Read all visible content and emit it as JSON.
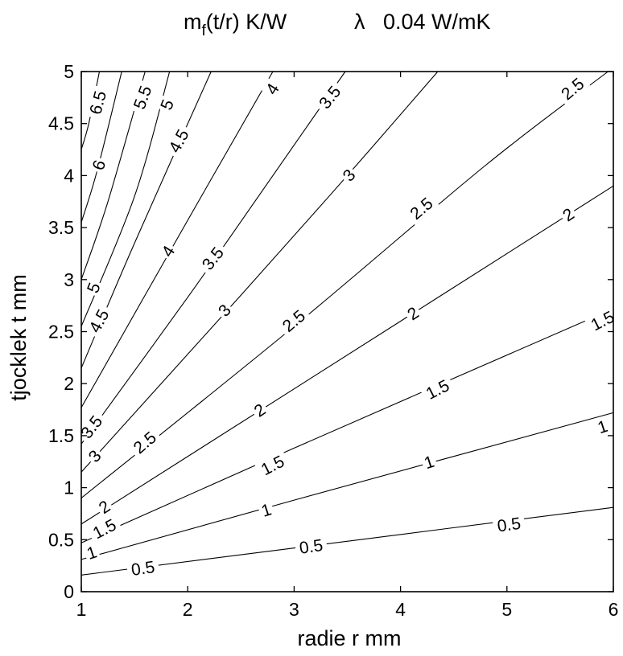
{
  "chart_data": {
    "type": "contour",
    "title": "m_f(t/r)  K/W      λ  0.04 W/mK",
    "title_parts": {
      "base": "m",
      "subscript": "f",
      "rest": "(t/r)  K/W",
      "lambda_symbol": "λ",
      "lambda_value": "0.04 W/mK"
    },
    "xlabel": "radie r  mm",
    "ylabel": "tjocklek t  mm",
    "xlim": [
      1,
      6
    ],
    "ylim": [
      0,
      5
    ],
    "xticks": [
      1,
      2,
      3,
      4,
      5,
      6
    ],
    "yticks": [
      0,
      0.5,
      1,
      1.5,
      2,
      2.5,
      3,
      3.5,
      4,
      4.5,
      5
    ],
    "xtick_labels": [
      "1",
      "2",
      "3",
      "4",
      "5",
      "6"
    ],
    "ytick_labels": [
      "0",
      "0.5",
      "1",
      "1.5",
      "2",
      "2.5",
      "3",
      "3.5",
      "4",
      "4.5",
      "5"
    ],
    "grid": false,
    "line_color": "#000000",
    "contours": [
      {
        "points": [
          [
            1.0,
            0.16
          ],
          [
            3.0,
            0.42
          ],
          [
            6.0,
            0.81
          ]
        ],
        "labels": [
          {
            "text": "0.5",
            "x": 1.58,
            "y": 0.22,
            "angle": -8
          },
          {
            "text": "0.5",
            "x": 3.16,
            "y": 0.43,
            "angle": -8
          },
          {
            "text": "0.5",
            "x": 5.02,
            "y": 0.64,
            "angle": -8
          }
        ]
      },
      {
        "points": [
          [
            1.0,
            0.31
          ],
          [
            3.0,
            0.88
          ],
          [
            6.0,
            1.72
          ]
        ],
        "labels": [
          {
            "text": "1",
            "x": 1.1,
            "y": 0.37,
            "angle": -18
          },
          {
            "text": "1",
            "x": 2.74,
            "y": 0.78,
            "angle": -18
          },
          {
            "text": "1",
            "x": 4.27,
            "y": 1.24,
            "angle": -18
          },
          {
            "text": "1",
            "x": 5.9,
            "y": 1.58,
            "angle": -18
          }
        ]
      },
      {
        "points": [
          [
            1.0,
            0.47
          ],
          [
            3.0,
            1.38
          ],
          [
            6.0,
            2.72
          ]
        ],
        "labels": [
          {
            "text": "1.5",
            "x": 1.22,
            "y": 0.6,
            "angle": -27
          },
          {
            "text": "1.5",
            "x": 2.8,
            "y": 1.21,
            "angle": -27
          },
          {
            "text": "1.5",
            "x": 4.35,
            "y": 1.94,
            "angle": -27
          },
          {
            "text": "1.5",
            "x": 5.9,
            "y": 2.6,
            "angle": -27
          }
        ]
      },
      {
        "points": [
          [
            1.0,
            0.65
          ],
          [
            3.0,
            1.95
          ],
          [
            6.0,
            3.9
          ]
        ],
        "labels": [
          {
            "text": "2",
            "x": 1.22,
            "y": 0.81,
            "angle": -34
          },
          {
            "text": "2",
            "x": 2.68,
            "y": 1.74,
            "angle": -34
          },
          {
            "text": "2",
            "x": 4.12,
            "y": 2.67,
            "angle": -34
          },
          {
            "text": "2",
            "x": 5.58,
            "y": 3.62,
            "angle": -34
          }
        ]
      },
      {
        "points": [
          [
            1.0,
            0.9
          ],
          [
            3.0,
            2.55
          ],
          [
            4.8,
            4.1
          ],
          [
            5.95,
            5.0
          ]
        ],
        "labels": [
          {
            "text": "2.5",
            "x": 1.6,
            "y": 1.43,
            "angle": -40
          },
          {
            "text": "2.5",
            "x": 3.0,
            "y": 2.6,
            "angle": -40
          },
          {
            "text": "2.5",
            "x": 4.2,
            "y": 3.68,
            "angle": -40
          },
          {
            "text": "2.5",
            "x": 5.62,
            "y": 4.83,
            "angle": -40
          }
        ]
      },
      {
        "points": [
          [
            1.0,
            1.15
          ],
          [
            2.5,
            2.85
          ],
          [
            3.5,
            4.0
          ],
          [
            4.35,
            5.0
          ]
        ],
        "labels": [
          {
            "text": "3",
            "x": 1.13,
            "y": 1.3,
            "angle": -48
          },
          {
            "text": "3",
            "x": 2.35,
            "y": 2.7,
            "angle": -48
          },
          {
            "text": "3",
            "x": 3.52,
            "y": 4.0,
            "angle": -48
          }
        ]
      },
      {
        "points": [
          [
            1.0,
            1.42
          ],
          [
            2.0,
            2.83
          ],
          [
            2.8,
            4.0
          ],
          [
            3.48,
            5.0
          ]
        ],
        "labels": [
          {
            "text": "3.5",
            "x": 1.1,
            "y": 1.58,
            "angle": -52
          },
          {
            "text": "3.5",
            "x": 2.24,
            "y": 3.2,
            "angle": -52
          },
          {
            "text": "3.5",
            "x": 3.34,
            "y": 4.75,
            "angle": -52
          }
        ]
      },
      {
        "points": [
          [
            1.0,
            1.77
          ],
          [
            2.0,
            3.57
          ],
          [
            2.8,
            5.0
          ]
        ],
        "labels": [
          {
            "text": "4",
            "x": 1.82,
            "y": 3.27,
            "angle": -58
          },
          {
            "text": "4",
            "x": 2.8,
            "y": 4.83,
            "angle": -58
          }
        ]
      },
      {
        "points": [
          [
            1.0,
            2.15
          ],
          [
            1.5,
            3.35
          ],
          [
            2.22,
            5.0
          ]
        ],
        "labels": [
          {
            "text": "4.5",
            "x": 1.17,
            "y": 2.6,
            "angle": -62
          },
          {
            "text": "4.5",
            "x": 1.92,
            "y": 4.33,
            "angle": -62
          }
        ]
      },
      {
        "points": [
          [
            1.0,
            2.55
          ],
          [
            1.5,
            3.8
          ],
          [
            1.83,
            5.0
          ]
        ],
        "labels": [
          {
            "text": "5",
            "x": 1.12,
            "y": 2.92,
            "angle": -68
          },
          {
            "text": "5",
            "x": 1.81,
            "y": 4.68,
            "angle": -68
          }
        ]
      },
      {
        "points": [
          [
            1.0,
            3.0
          ],
          [
            1.25,
            3.75
          ],
          [
            1.6,
            5.0
          ]
        ],
        "labels": [
          {
            "text": "5.5",
            "x": 1.58,
            "y": 4.75,
            "angle": -70
          }
        ]
      },
      {
        "points": [
          [
            1.0,
            3.55
          ],
          [
            1.15,
            4.05
          ],
          [
            1.38,
            5.0
          ]
        ],
        "labels": [
          {
            "text": "6",
            "x": 1.17,
            "y": 4.1,
            "angle": -72
          }
        ]
      },
      {
        "points": [
          [
            1.0,
            4.25
          ],
          [
            1.07,
            4.5
          ],
          [
            1.17,
            5.0
          ]
        ],
        "labels": [
          {
            "text": "6.5",
            "x": 1.16,
            "y": 4.7,
            "angle": -75
          }
        ]
      }
    ]
  }
}
